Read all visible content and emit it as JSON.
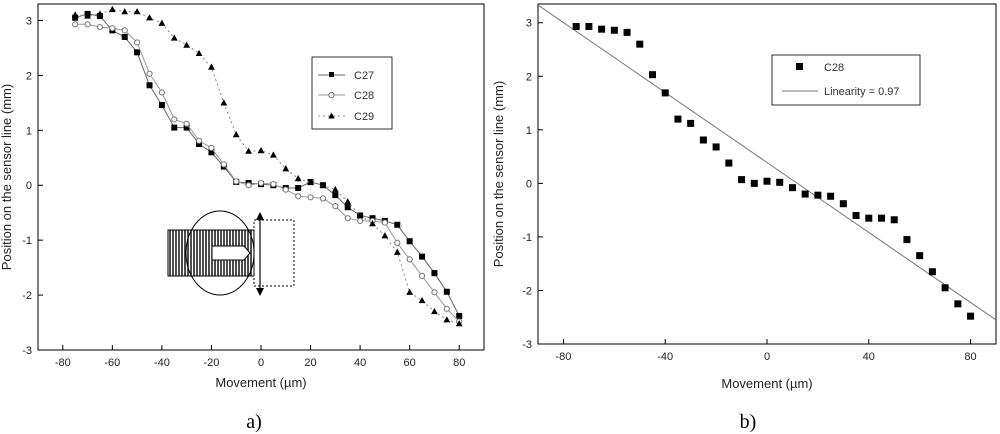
{
  "chart_data": [
    {
      "type": "line",
      "panel_label": "a)",
      "xlabel": "Movement (µm)",
      "ylabel": "Position on the sensor line (mm)",
      "xlim": [
        -90,
        90
      ],
      "ylim": [
        -3,
        3.3
      ],
      "xticks": [
        -80,
        -60,
        -40,
        -20,
        0,
        20,
        40,
        60,
        80
      ],
      "yticks": [
        -3,
        -2,
        -1,
        0,
        1,
        2,
        3
      ],
      "grid": false,
      "legend_position": "top-right",
      "series": [
        {
          "name": "C27",
          "marker": "square",
          "color": "#000000",
          "line_color": "#666666",
          "dash": "",
          "x": [
            -75,
            -70,
            -65,
            -60,
            -55,
            -50,
            -45,
            -40,
            -35,
            -30,
            -25,
            -20,
            -15,
            -10,
            -5,
            0,
            5,
            10,
            15,
            20,
            25,
            30,
            35,
            40,
            45,
            50,
            55,
            60,
            65,
            70,
            75,
            80
          ],
          "y": [
            3.05,
            3.12,
            3.08,
            2.82,
            2.7,
            2.42,
            1.82,
            1.46,
            1.05,
            1.05,
            0.75,
            0.6,
            0.34,
            0.06,
            0.04,
            0.02,
            0.0,
            -0.05,
            -0.05,
            0.06,
            0.0,
            -0.18,
            -0.4,
            -0.55,
            -0.6,
            -0.65,
            -0.72,
            -1.02,
            -1.3,
            -1.6,
            -1.94,
            -2.38
          ]
        },
        {
          "name": "C28",
          "marker": "circle",
          "color": "#777777",
          "line_color": "#999999",
          "dash": "",
          "x": [
            -75,
            -70,
            -65,
            -60,
            -55,
            -50,
            -45,
            -40,
            -35,
            -30,
            -25,
            -20,
            -15,
            -10,
            -5,
            0,
            5,
            10,
            15,
            20,
            25,
            30,
            35,
            40,
            45,
            50,
            55,
            60,
            65,
            70,
            75,
            80
          ],
          "y": [
            2.93,
            2.93,
            2.88,
            2.86,
            2.82,
            2.6,
            2.03,
            1.69,
            1.2,
            1.12,
            0.81,
            0.68,
            0.38,
            0.07,
            0.0,
            0.04,
            0.02,
            -0.08,
            -0.2,
            -0.22,
            -0.24,
            -0.38,
            -0.6,
            -0.65,
            -0.65,
            -0.68,
            -1.05,
            -1.35,
            -1.65,
            -1.95,
            -2.25,
            -2.48
          ]
        },
        {
          "name": "C29",
          "marker": "triangle",
          "color": "#000000",
          "line_color": "#888888",
          "dash": "2,3",
          "x": [
            -75,
            -70,
            -65,
            -60,
            -55,
            -50,
            -45,
            -40,
            -35,
            -30,
            -25,
            -20,
            -15,
            -10,
            -5,
            0,
            5,
            10,
            15,
            20,
            25,
            30,
            35,
            40,
            45,
            50,
            55,
            60,
            65,
            70,
            75,
            80
          ],
          "y": [
            3.1,
            3.08,
            3.12,
            3.2,
            3.16,
            3.16,
            3.05,
            2.95,
            2.68,
            2.55,
            2.4,
            2.15,
            1.5,
            0.92,
            0.62,
            0.63,
            0.55,
            0.3,
            0.12,
            0.05,
            0.0,
            -0.08,
            -0.3,
            -0.55,
            -0.7,
            -0.92,
            -1.22,
            -1.95,
            -2.1,
            -2.3,
            -2.45,
            -2.52
          ]
        }
      ]
    },
    {
      "type": "scatter",
      "panel_label": "b)",
      "xlabel": "Movement (µm)",
      "ylabel": "Position on the sensor line (mm)",
      "xlim": [
        -90,
        90
      ],
      "ylim": [
        -3,
        3.35
      ],
      "xticks": [
        -80,
        -40,
        0,
        40,
        80
      ],
      "yticks": [
        -3,
        -2,
        -1,
        0,
        1,
        2,
        3
      ],
      "grid": false,
      "legend_position": "top-right",
      "series": [
        {
          "name": "C28",
          "marker": "square",
          "color": "#000000",
          "x": [
            -75,
            -70,
            -65,
            -60,
            -55,
            -50,
            -45,
            -40,
            -35,
            -30,
            -25,
            -20,
            -15,
            -10,
            -5,
            0,
            5,
            10,
            15,
            20,
            25,
            30,
            35,
            40,
            45,
            50,
            55,
            60,
            65,
            70,
            75,
            80
          ],
          "y": [
            2.93,
            2.93,
            2.88,
            2.86,
            2.82,
            2.6,
            2.03,
            1.69,
            1.2,
            1.12,
            0.81,
            0.68,
            0.38,
            0.07,
            0.0,
            0.04,
            0.02,
            -0.08,
            -0.2,
            -0.22,
            -0.24,
            -0.38,
            -0.6,
            -0.65,
            -0.65,
            -0.68,
            -1.05,
            -1.35,
            -1.65,
            -1.95,
            -2.25,
            -2.48
          ]
        }
      ],
      "fit_line": {
        "name": "Linearity = 0.97",
        "color": "#777777",
        "x": [
          -90,
          90
        ],
        "y": [
          3.33,
          -2.55
        ]
      }
    }
  ]
}
